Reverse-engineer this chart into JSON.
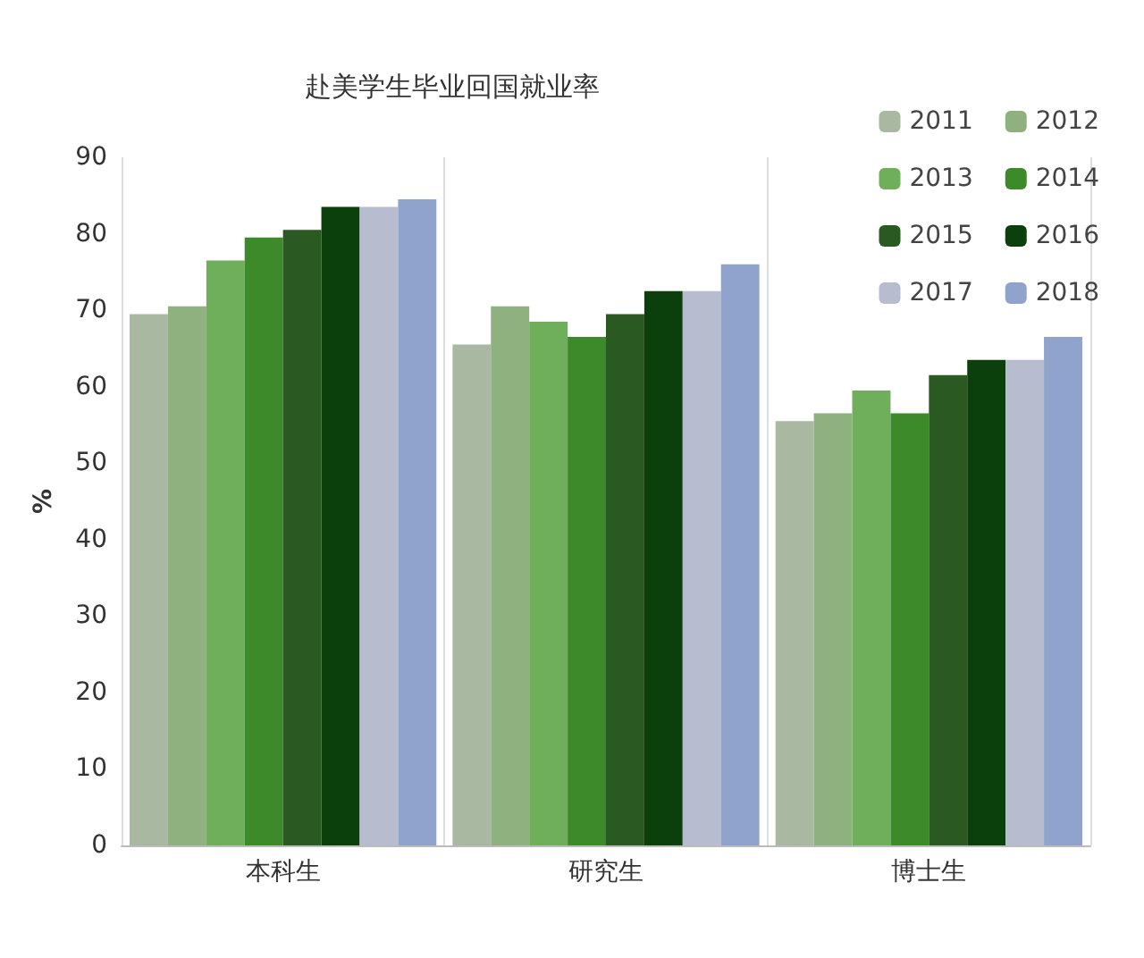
{
  "chart_data": {
    "type": "bar",
    "title": "赴美学生毕业回国就业率",
    "ylabel": "%",
    "categories": [
      "本科生",
      "研究生",
      "博士生"
    ],
    "series": [
      {
        "name": "2011",
        "color": "#a9b8a0",
        "values": [
          69.5,
          65.5,
          55.5
        ]
      },
      {
        "name": "2012",
        "color": "#8fb07f",
        "values": [
          70.5,
          70.5,
          56.5
        ]
      },
      {
        "name": "2013",
        "color": "#6fae5a",
        "values": [
          76.5,
          68.5,
          59.5
        ]
      },
      {
        "name": "2014",
        "color": "#3c8a2a",
        "values": [
          79.5,
          66.5,
          56.5
        ]
      },
      {
        "name": "2015",
        "color": "#2a5a22",
        "values": [
          80.5,
          69.5,
          61.5
        ]
      },
      {
        "name": "2016",
        "color": "#0b3f0b",
        "values": [
          83.5,
          72.5,
          63.5
        ]
      },
      {
        "name": "2017",
        "color": "#b7bccf",
        "values": [
          83.5,
          72.5,
          63.5
        ]
      },
      {
        "name": "2018",
        "color": "#8fa3cc",
        "values": [
          84.5,
          76,
          66.5
        ]
      }
    ],
    "ylim": [
      0,
      90
    ],
    "yticks": [
      0,
      10,
      20,
      30,
      40,
      50,
      60,
      70,
      80,
      90
    ],
    "grid": "x",
    "legend": "top right"
  }
}
